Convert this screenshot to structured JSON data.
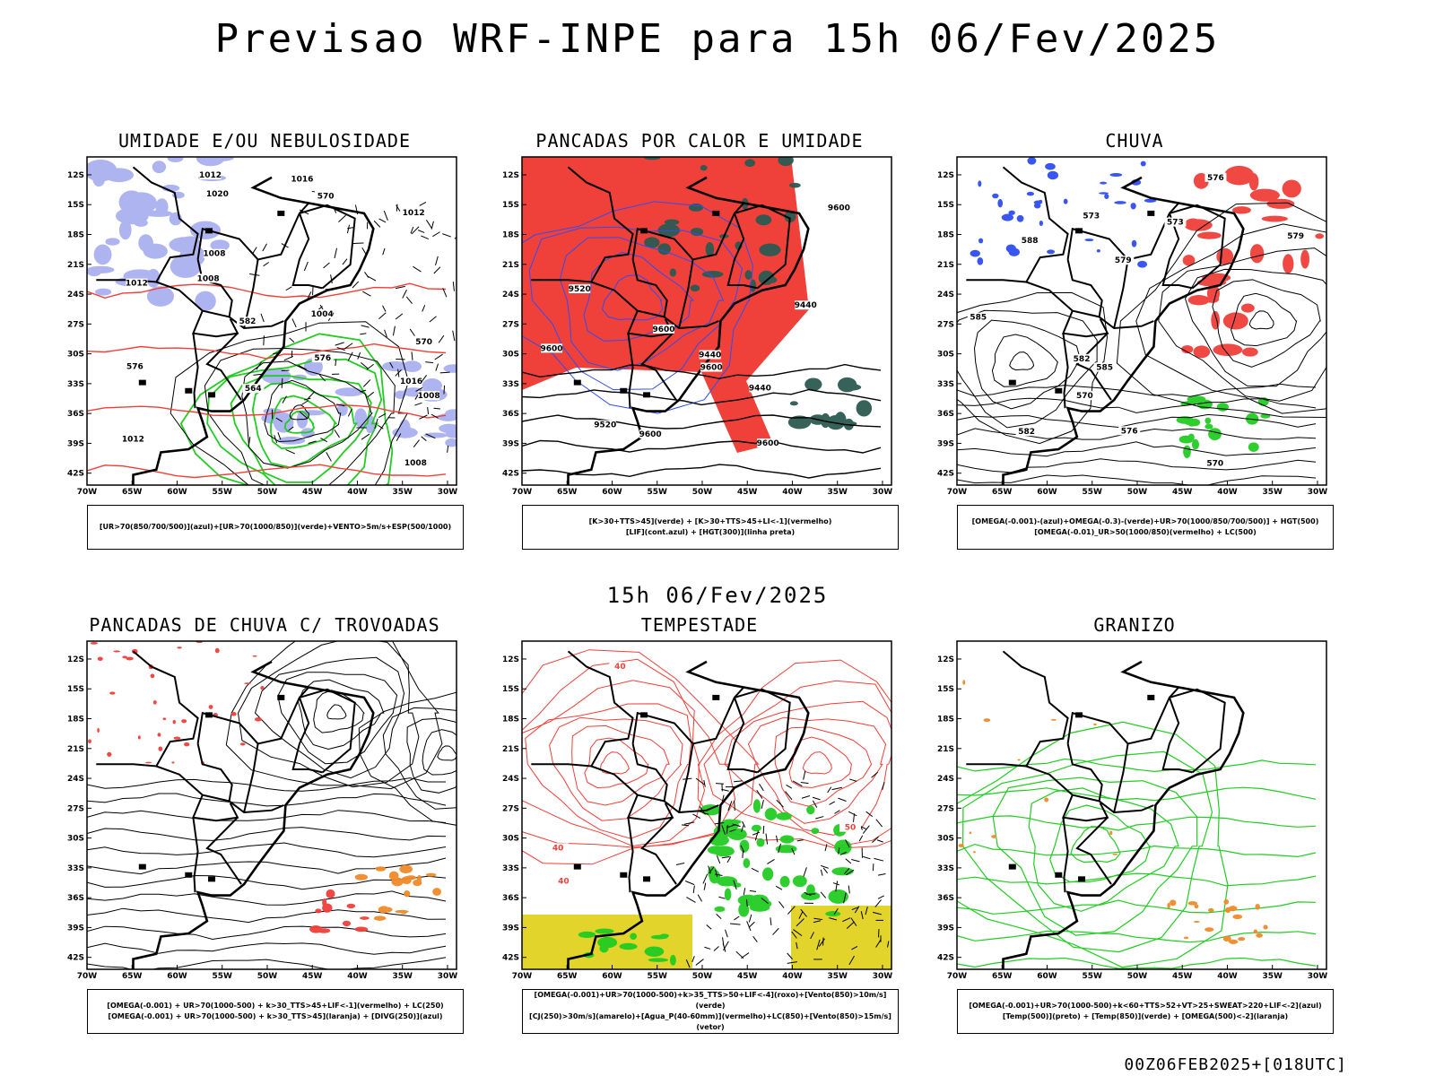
{
  "title": "Previsao WRF-INPE  para 15h 06/Fev/2025",
  "mid_title": "15h 06/Fev/2025",
  "footer": "00Z06FEB2025+[018UTC]",
  "lat_ticks": [
    "12S",
    "15S",
    "18S",
    "21S",
    "24S",
    "27S",
    "30S",
    "33S",
    "36S",
    "39S",
    "42S"
  ],
  "lon_ticks": [
    "70W",
    "65W",
    "60W",
    "55W",
    "50W",
    "45W",
    "40W",
    "35W",
    "30W"
  ],
  "colors": {
    "blue": "#2f4ef2",
    "green": "#22cc22",
    "red": "#f0403a",
    "orange": "#f08a2a",
    "yellow": "#e2d42a",
    "lavender": "#aab0f0",
    "darkgreen": "#2c5a52"
  },
  "panels": [
    {
      "id": "umidade",
      "title": "UMIDADE E/OU NEBULOSIDADE",
      "legend": [
        "[UR>70(850/700/500)](azul)+[UR>70(1000/850)](verde)+VENTO>5m/s+ESP(500/1000)"
      ],
      "contour_labels": [
        "1012",
        "1008",
        "1012",
        "1016",
        "1008",
        "1012",
        "1004",
        "1008",
        "1012",
        "1016",
        "1020",
        "1008",
        "576",
        "570",
        "582",
        "564",
        "576",
        "570"
      ]
    },
    {
      "id": "pancadas",
      "title": "PANCADAS POR CALOR E UMIDADE",
      "legend": [
        "[K>30+TTS>45](verde) + [K>30+TTS>45+LI<-1](vermelho)",
        "[LIF](cont.azul) + [HGT(300)](linha preta)"
      ],
      "contour_labels": [
        "9600",
        "9600",
        "9600",
        "9600",
        "9600",
        "9520",
        "9520",
        "9440",
        "9440",
        "9440",
        "9600"
      ]
    },
    {
      "id": "chuva",
      "title": "CHUVA",
      "legend": [
        "[OMEGA(-0.001)-(azul)+OMEGA(-0.3)-(verde)+UR>70(1000/850/700/500)] + HGT(500)",
        "[OMEGA(-0.01)_UR>50(1000/850)(vermelho) + LC(500)"
      ],
      "contour_labels": [
        "585",
        "582",
        "585",
        "579",
        "576",
        "573",
        "570",
        "588",
        "582",
        "579",
        "576",
        "573",
        "570"
      ]
    },
    {
      "id": "trovoadas",
      "title": "PANCADAS DE CHUVA C/ TROVOADAS",
      "legend": [
        "[OMEGA(-0.001) + UR>70(1000-500) + k>30_TTS>45+LIF<-1](vermelho) + LC(250)",
        "[OMEGA(-0.001) + UR>70(1000-500) + k>30_TTS>45](laranja) + [DIVG(250)](azul)"
      ],
      "contour_labels": []
    },
    {
      "id": "tempestade",
      "title": "TEMPESTADE",
      "legend": [
        "[OMEGA(-0.001)+UR>70(1000-500)+k>35_TTS>50+LIF<-4](roxo)+[Vento(850)>10m/s](verde)",
        "[CJ(250)>30m/s](amarelo)+[Agua_P(40-60mm)](vermelho)+LC(850)+[Vento(850)>15m/s](vetor)"
      ],
      "contour_labels": [
        "40",
        "40",
        "40",
        "50"
      ]
    },
    {
      "id": "granizo",
      "title": "GRANIZO",
      "legend": [
        "[OMEGA(-0.001)+UR>70(1000-500)+k<60+TTS>52+VT>25+SWEAT>220+LIF<-2](azul)",
        "[Temp(500)](preto) + [Temp(850)](verde) + [OMEGA(500)<-2](laranja)"
      ],
      "contour_labels": []
    }
  ]
}
